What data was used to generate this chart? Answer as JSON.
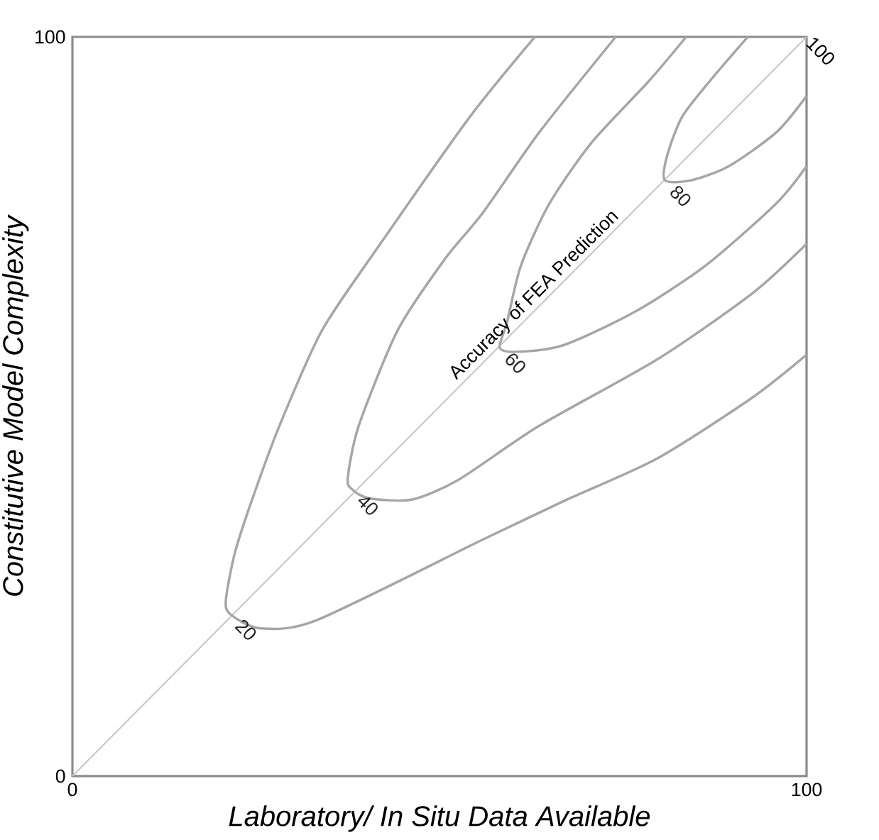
{
  "chart_data": {
    "type": "line",
    "xlabel": "Laboratory/ In Situ Data Available",
    "ylabel": "Constitutive Model Complexity",
    "xlim": [
      0,
      100
    ],
    "ylim": [
      0,
      100
    ],
    "xticks": [
      0,
      100
    ],
    "yticks": [
      0,
      100
    ],
    "line_style": "solid",
    "marker": "none",
    "annotations": [
      {
        "text": "100",
        "x": 100,
        "y": 100
      },
      {
        "text": "Accuracy of FEA Prediction",
        "x": 64,
        "y": 64
      }
    ],
    "series": [
      {
        "color": "#c8c8c8",
        "x": [
          0,
          100
        ],
        "values": [
          0,
          100
        ]
      },
      {
        "name": "20",
        "color": "#a6a6a6",
        "x": [
          63,
          54,
          41.8,
          34,
          28.2,
          24.4,
          22.1,
          20.9,
          21.5,
          25.5,
          33.3,
          55.9,
          66.9,
          79.7,
          92.6,
          100
        ],
        "values": [
          100,
          89,
          71.8,
          60.3,
          47.4,
          37.2,
          30.1,
          23.8,
          21.9,
          20,
          21.1,
          32,
          37.2,
          43,
          51.2,
          57
        ]
      },
      {
        "name": "40",
        "color": "#a6a6a6",
        "x": [
          74,
          63.6,
          55.9,
          50.7,
          44.3,
          39,
          37.5,
          38.1,
          40.4,
          46.2,
          52.6,
          63.6,
          79.7,
          92.6,
          100
        ],
        "values": [
          100,
          87.1,
          76.2,
          69.9,
          60.3,
          47.4,
          40.3,
          38.8,
          37.6,
          37.4,
          40.1,
          47.4,
          56.4,
          65.3,
          72
        ]
      },
      {
        "name": "60",
        "color": "#a6a6a6",
        "x": [
          83.6,
          78.5,
          70.8,
          65,
          61.1,
          59.2,
          58.2,
          60.3,
          66.9,
          76.6,
          86.3,
          95.9,
          100
        ],
        "values": [
          100,
          94,
          85.8,
          77.5,
          69.1,
          61.4,
          58,
          57.4,
          58.3,
          62.8,
          69.1,
          77.5,
          82.5
        ]
      },
      {
        "name": "80",
        "color": "#a6a6a6",
        "x": [
          92,
          86.8,
          83,
          81,
          80.7,
          84.3,
          89.4,
          95.9,
          100
        ],
        "values": [
          100,
          94,
          89.1,
          83.9,
          80.6,
          80.6,
          82.5,
          87.1,
          92
        ]
      }
    ]
  }
}
